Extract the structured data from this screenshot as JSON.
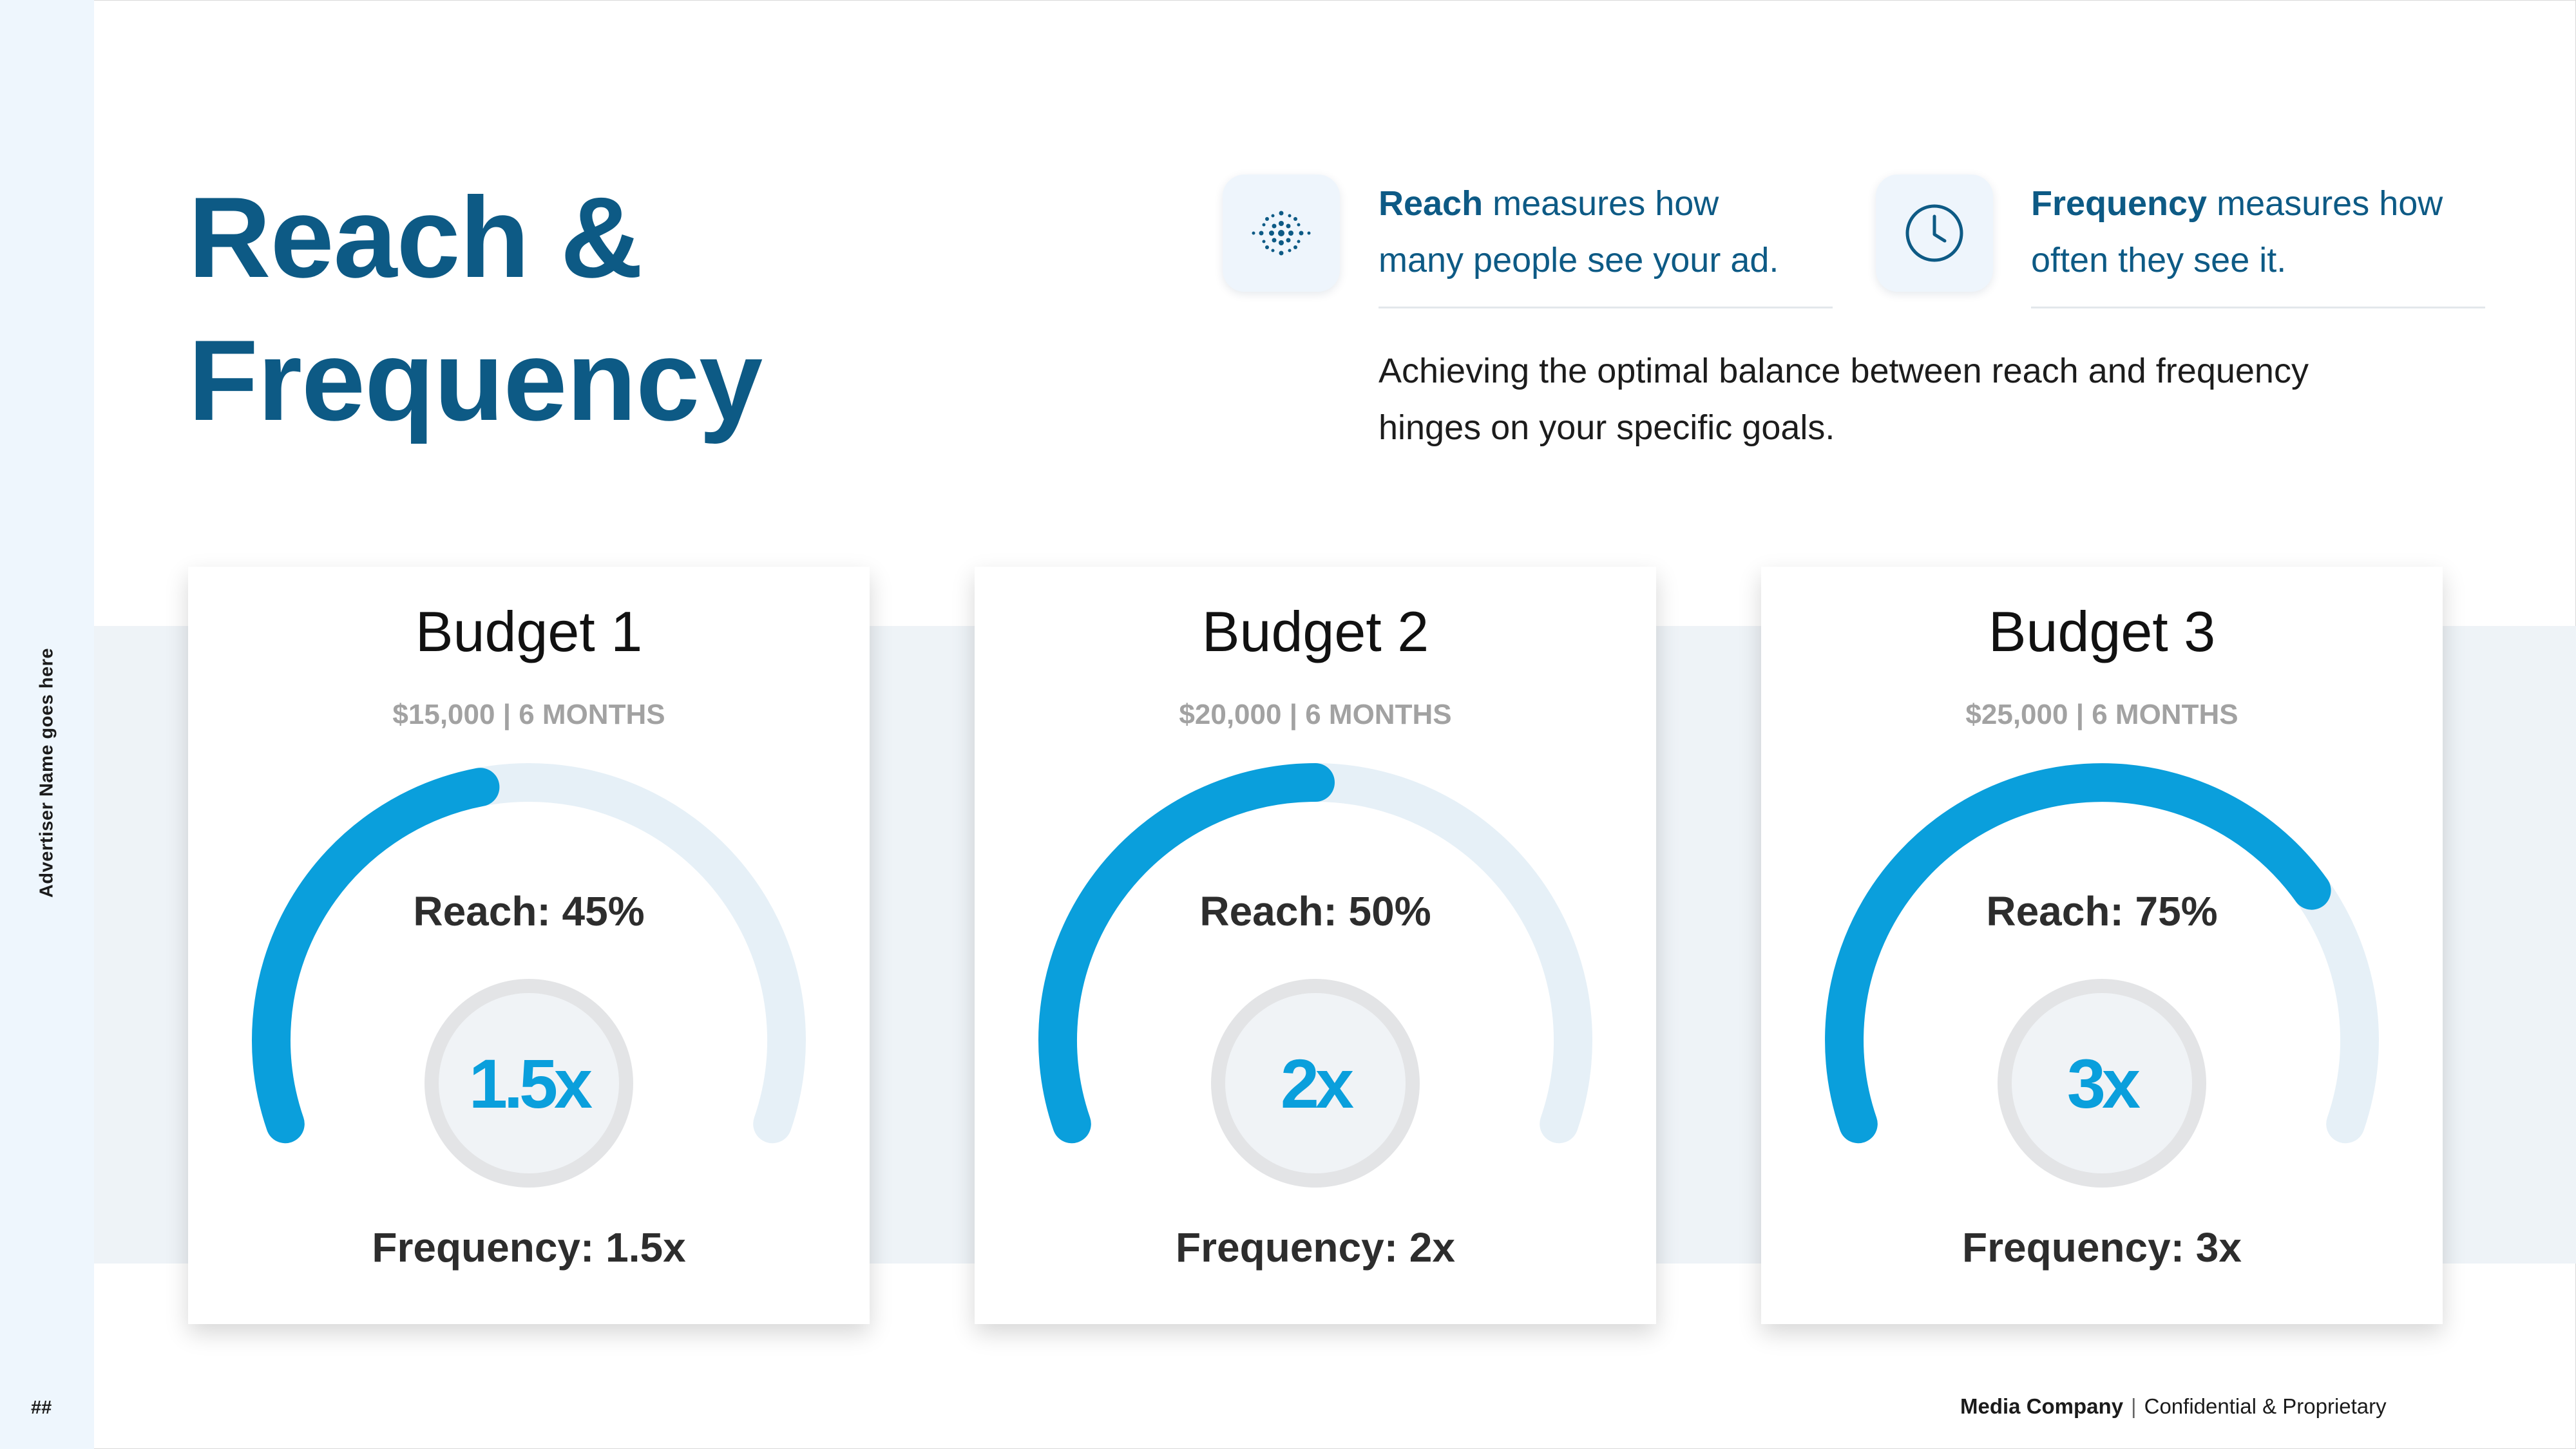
{
  "sidebar": {
    "advertiser": "Advertiser Name goes here",
    "page_number": "##"
  },
  "title": {
    "line1": "Reach &",
    "line2": "Frequency"
  },
  "definitions": {
    "reach": {
      "icon": "people-network-icon",
      "term": "Reach",
      "line1_rest": " measures how",
      "line2": "many people see your ad."
    },
    "frequency": {
      "icon": "clock-icon",
      "term": "Frequency",
      "line1_rest": " measures how",
      "line2": "often they see it."
    }
  },
  "summary": {
    "line1": "Achieving the optimal balance between reach and frequency",
    "line2": "hinges on your specific goals."
  },
  "colors": {
    "brand_dark": "#0d5a85",
    "accent": "#0a9fdc",
    "track": "#e6f0f7"
  },
  "budgets": [
    {
      "title": "Budget 1",
      "subtitle": "$15,000 | 6 MONTHS",
      "reach_label": "Reach: 45%",
      "reach_pct": 45,
      "frequency_value": "1.5x",
      "frequency_label": "Frequency: 1.5x"
    },
    {
      "title": "Budget 2",
      "subtitle": "$20,000 | 6 MONTHS",
      "reach_label": "Reach: 50%",
      "reach_pct": 50,
      "frequency_value": "2x",
      "frequency_label": "Frequency: 2x"
    },
    {
      "title": "Budget 3",
      "subtitle": "$25,000 | 6 MONTHS",
      "reach_label": "Reach: 75%",
      "reach_pct": 75,
      "frequency_value": "3x",
      "frequency_label": "Frequency: 3x"
    }
  ],
  "footer": {
    "company": "Media Company",
    "separator": "|",
    "note": "Confidential & Proprietary"
  }
}
